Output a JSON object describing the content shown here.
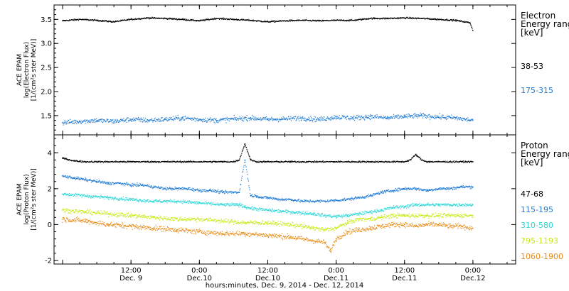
{
  "chart_data": [
    {
      "type": "scatter",
      "ylabel_lines": [
        "ACE EPAM",
        "log(Electron Flux)",
        "[1/(cm²s ster MeV)]"
      ],
      "yticks": [
        1.5,
        2.0,
        2.5,
        3.0,
        3.5
      ],
      "yticklabels": [
        "1.5",
        "2.0",
        "2.5",
        "3.0",
        "3.5"
      ],
      "ylim": [
        1.1,
        3.8
      ],
      "legend": {
        "title_lines": [
          "Electron",
          "Energy ranges",
          "[keV]"
        ],
        "items": [
          "38-53",
          "175-315"
        ]
      },
      "series": [
        {
          "name": "38-53",
          "color": "#000000",
          "x": [
            0,
            3,
            6,
            9,
            12,
            15,
            18,
            21,
            24,
            27,
            30,
            33,
            36,
            39,
            42,
            45,
            48,
            51,
            54,
            57,
            60,
            63,
            66,
            69,
            71.5,
            72
          ],
          "y": [
            3.47,
            3.5,
            3.48,
            3.45,
            3.5,
            3.53,
            3.52,
            3.5,
            3.47,
            3.52,
            3.5,
            3.48,
            3.45,
            3.47,
            3.48,
            3.47,
            3.48,
            3.48,
            3.52,
            3.52,
            3.53,
            3.52,
            3.5,
            3.48,
            3.43,
            3.27
          ]
        },
        {
          "name": "175-315",
          "color": "#1f7ad4",
          "x": [
            0,
            3,
            6,
            9,
            12,
            15,
            18,
            21,
            24,
            27,
            30,
            33,
            36,
            39,
            42,
            45,
            48,
            51,
            54,
            57,
            60,
            63,
            66,
            69,
            72
          ],
          "y": [
            1.35,
            1.38,
            1.4,
            1.38,
            1.42,
            1.4,
            1.42,
            1.45,
            1.42,
            1.4,
            1.43,
            1.45,
            1.42,
            1.43,
            1.45,
            1.42,
            1.47,
            1.45,
            1.48,
            1.45,
            1.48,
            1.5,
            1.47,
            1.45,
            1.4
          ]
        }
      ]
    },
    {
      "type": "scatter",
      "ylabel_lines": [
        "ACE EPAM",
        "log(Proton Flux)",
        "[1/(cm²s ster MeV)]"
      ],
      "yticks": [
        -2,
        0,
        2,
        4
      ],
      "yticklabels": [
        "-2",
        "0",
        "2",
        "4"
      ],
      "ylim": [
        -2.2,
        5.0
      ],
      "legend": {
        "title_lines": [
          "Proton",
          "Energy ranges",
          "[keV]"
        ],
        "items": [
          "47-68",
          "115-195",
          "310-580",
          "795-1193",
          "1060-1900"
        ]
      },
      "series": [
        {
          "name": "47-68",
          "color": "#000000",
          "x": [
            0,
            2,
            4,
            6,
            8,
            10,
            12,
            14,
            16,
            18,
            20,
            22,
            24,
            26,
            28,
            30,
            31,
            32,
            33,
            34,
            36,
            38,
            40,
            42,
            44,
            46,
            48,
            50,
            52,
            54,
            56,
            58,
            60,
            61,
            62,
            63,
            64,
            66,
            68,
            70,
            72
          ],
          "y": [
            3.7,
            3.55,
            3.5,
            3.5,
            3.5,
            3.5,
            3.5,
            3.5,
            3.5,
            3.5,
            3.5,
            3.5,
            3.5,
            3.5,
            3.5,
            3.5,
            3.6,
            4.5,
            3.6,
            3.5,
            3.5,
            3.5,
            3.5,
            3.5,
            3.5,
            3.5,
            3.5,
            3.5,
            3.5,
            3.5,
            3.5,
            3.5,
            3.5,
            3.6,
            3.9,
            3.6,
            3.5,
            3.5,
            3.5,
            3.5,
            3.5
          ]
        },
        {
          "name": "115-195",
          "color": "#1f7ad4",
          "x": [
            0,
            2,
            4,
            6,
            8,
            10,
            12,
            14,
            16,
            18,
            20,
            22,
            24,
            26,
            28,
            30,
            31,
            32,
            33,
            34,
            35,
            36,
            38,
            40,
            42,
            44,
            46,
            48,
            50,
            52,
            54,
            56,
            58,
            60,
            62,
            64,
            66,
            68,
            70,
            72
          ],
          "y": [
            2.7,
            2.6,
            2.5,
            2.4,
            2.3,
            2.3,
            2.2,
            2.2,
            2.1,
            2.0,
            2.0,
            2.0,
            1.9,
            1.9,
            1.8,
            1.8,
            1.8,
            3.6,
            1.6,
            1.6,
            1.5,
            1.5,
            1.4,
            1.4,
            1.3,
            1.3,
            1.3,
            1.35,
            1.4,
            1.5,
            1.6,
            1.8,
            1.9,
            2.0,
            2.0,
            1.9,
            2.0,
            2.0,
            2.1,
            2.1
          ]
        },
        {
          "name": "310-580",
          "color": "#2ad6d6",
          "x": [
            0,
            4,
            8,
            12,
            16,
            20,
            24,
            28,
            31,
            32,
            33,
            36,
            40,
            44,
            46,
            48,
            50,
            52,
            54,
            56,
            58,
            60,
            62,
            64,
            66,
            68,
            70,
            72
          ],
          "y": [
            1.7,
            1.6,
            1.5,
            1.4,
            1.3,
            1.3,
            1.2,
            1.1,
            1.1,
            1.0,
            0.9,
            0.8,
            0.7,
            0.6,
            0.5,
            0.45,
            0.5,
            0.6,
            0.7,
            0.8,
            0.95,
            1.0,
            1.1,
            1.1,
            1.1,
            1.1,
            1.1,
            1.1
          ]
        },
        {
          "name": "795-1193",
          "color": "#c8e814",
          "x": [
            0,
            4,
            8,
            12,
            16,
            20,
            24,
            28,
            32,
            36,
            40,
            44,
            46,
            48,
            50,
            52,
            54,
            56,
            58,
            60,
            62,
            64,
            66,
            68,
            70,
            72
          ],
          "y": [
            0.8,
            0.7,
            0.6,
            0.5,
            0.4,
            0.3,
            0.3,
            0.2,
            0.1,
            0.1,
            0.0,
            -0.2,
            -0.3,
            -0.2,
            0.1,
            0.3,
            0.3,
            0.4,
            0.5,
            0.5,
            0.5,
            0.5,
            0.5,
            0.5,
            0.5,
            0.5
          ]
        },
        {
          "name": "1060-1900",
          "color": "#e88a14",
          "x": [
            0,
            4,
            8,
            12,
            16,
            20,
            24,
            28,
            32,
            36,
            40,
            44,
            46,
            47,
            48,
            50,
            52,
            54,
            56,
            58,
            60,
            62,
            64,
            66,
            68,
            70,
            72
          ],
          "y": [
            0.3,
            0.2,
            0.0,
            -0.1,
            -0.2,
            -0.3,
            -0.4,
            -0.5,
            -0.5,
            -0.6,
            -0.7,
            -0.9,
            -1.0,
            -1.5,
            -0.8,
            -0.4,
            -0.3,
            -0.2,
            -0.1,
            0.0,
            0.0,
            -0.1,
            0.0,
            0.0,
            -0.1,
            -0.1,
            -0.2
          ]
        }
      ]
    }
  ],
  "x_axis": {
    "title": "hours:minutes, Dec. 9, 2014 - Dec. 12, 2014",
    "xlim": [
      -1.5,
      79.5
    ],
    "ticks": [
      {
        "x": 0,
        "time": "",
        "date": ""
      },
      {
        "x": 12,
        "time": "12:00",
        "date": "Dec. 9"
      },
      {
        "x": 24,
        "time": "0:00",
        "date": "Dec.10"
      },
      {
        "x": 36,
        "time": "12:00",
        "date": "Dec.10"
      },
      {
        "x": 48,
        "time": "0:00",
        "date": "Dec.11"
      },
      {
        "x": 60,
        "time": "12:00",
        "date": "Dec.11"
      },
      {
        "x": 72,
        "time": "0:00",
        "date": "Dec.12"
      }
    ],
    "minor_step": 3
  }
}
